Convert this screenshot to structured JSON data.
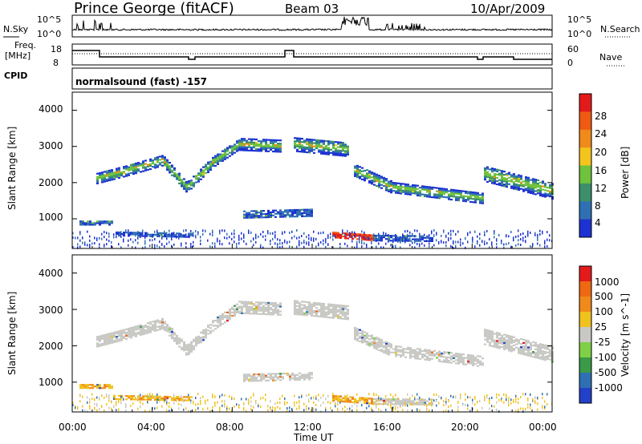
{
  "header": {
    "site": "Prince George (fitACF)",
    "beam": "Beam 03",
    "date": "10/Apr/2009"
  },
  "noise_panel": {
    "left_label": "N.Sky",
    "right_label": "N.Search",
    "left_ticks": [
      "10^5",
      "10^0"
    ]
  },
  "freq_panel": {
    "left_label_1": "Freq.",
    "left_label_2": "[MHz]",
    "left_ticks": [
      "18",
      "8"
    ],
    "right_label": "Nave",
    "right_ticks": [
      "60",
      "0"
    ]
  },
  "cpid_panel": {
    "label": "CPID",
    "mode": "normalsound (fast) -157"
  },
  "colors": {
    "frame": "#000000",
    "power_scale": [
      "#1e32d2",
      "#2f6fb3",
      "#3b8f6a",
      "#6ec23c",
      "#f3c31e",
      "#f08a1a",
      "#ef5b12",
      "#e31a1c"
    ],
    "velocity_scale": [
      "#2340c8",
      "#2f6fb3",
      "#3a9a48",
      "#7fd046",
      "#c8c8c4",
      "#f0c21e",
      "#f08a1a",
      "#ef6812",
      "#e31a1c"
    ]
  },
  "chart_data": [
    {
      "type": "heatmap",
      "title": "Power",
      "ylabel": "Slant Range [km]",
      "xlabel": "Time UT",
      "colorbar_label": "Power [dB]",
      "colorbar_ticks": [
        "28",
        "24",
        "20",
        "16",
        "12",
        "8",
        "4"
      ],
      "x_ticks": [
        "00:00",
        "04:00",
        "08:00",
        "12:00",
        "16:00",
        "20:00",
        "00:00"
      ],
      "y_ticks": [
        "1000",
        "2000",
        "3000",
        "4000"
      ],
      "xlim_hours": [
        0,
        24
      ],
      "ylim_km": [
        180,
        4500
      ]
    },
    {
      "type": "heatmap",
      "title": "Velocity",
      "ylabel": "Slant Range [km]",
      "xlabel": "Time UT",
      "colorbar_label": "Velocity [m s^-1]",
      "colorbar_ticks": [
        "1000",
        "500",
        "100",
        "25",
        "-25",
        "-100",
        "-500",
        "-1000"
      ],
      "x_ticks": [
        "00:00",
        "04:00",
        "08:00",
        "12:00",
        "16:00",
        "20:00",
        "00:00"
      ],
      "y_ticks": [
        "1000",
        "2000",
        "3000",
        "4000"
      ],
      "xlim_hours": [
        0,
        24
      ],
      "ylim_km": [
        180,
        4500
      ]
    }
  ]
}
